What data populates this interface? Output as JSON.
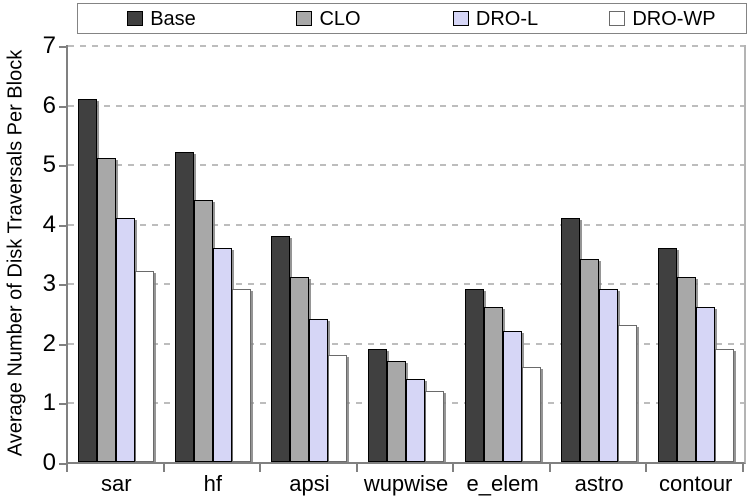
{
  "chart_data": {
    "type": "bar",
    "title": "",
    "xlabel": "",
    "ylabel": "Average Number of Disk Traversals Per Block",
    "ylim": [
      0,
      7
    ],
    "yticks": [
      0,
      1,
      2,
      3,
      4,
      5,
      6,
      7
    ],
    "grid": "horizontal-dashed",
    "legend_position": "top",
    "categories": [
      "sar",
      "hf",
      "apsi",
      "wupwise",
      "e_elem",
      "astro",
      "contour"
    ],
    "series": [
      {
        "name": "Base",
        "color": "#404040",
        "border": "#000000",
        "values": [
          6.1,
          5.2,
          3.8,
          1.9,
          2.9,
          4.1,
          3.6
        ]
      },
      {
        "name": "CLO",
        "color": "#a8a8a8",
        "border": "#000000",
        "values": [
          5.1,
          4.4,
          3.1,
          1.7,
          2.6,
          3.4,
          3.1
        ]
      },
      {
        "name": "DRO-L",
        "color": "#d6d6f6",
        "border": "#000000",
        "values": [
          4.1,
          3.6,
          2.4,
          1.4,
          2.2,
          2.9,
          2.6
        ]
      },
      {
        "name": "DRO-WP",
        "color": "#ffffff",
        "border": "#6a6a6a",
        "values": [
          3.2,
          2.9,
          1.8,
          1.2,
          1.6,
          2.3,
          1.9
        ]
      }
    ]
  },
  "colors": {
    "axis": "#808080",
    "gridline": "#bdbdbd",
    "legend_border": "#848484",
    "text": "#000000",
    "background": "#ffffff"
  }
}
